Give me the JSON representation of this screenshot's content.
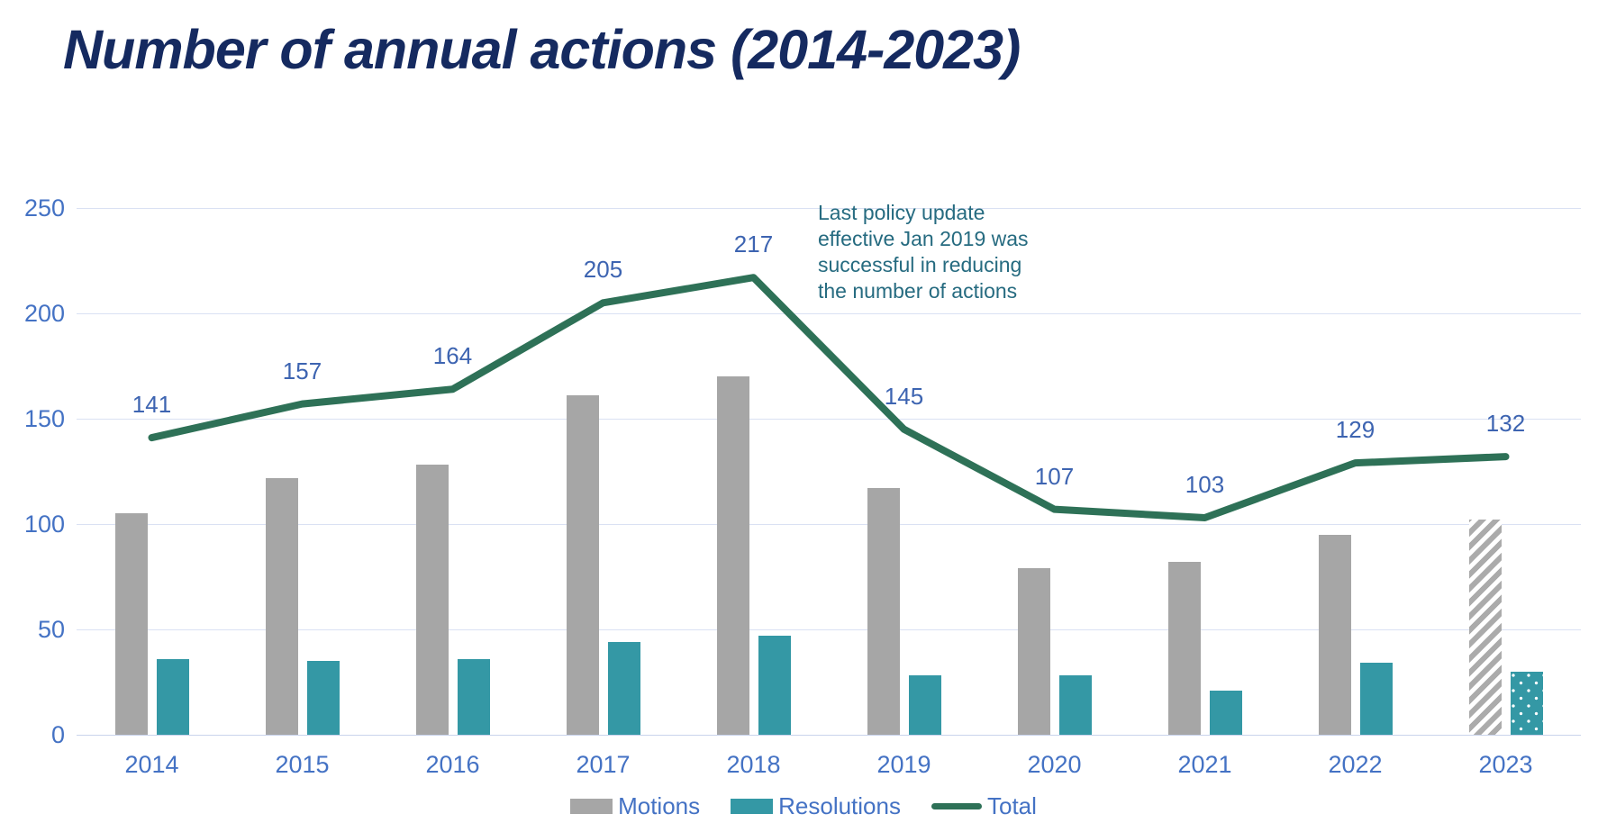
{
  "title": "Number of annual actions (2014-2023)",
  "annotation": "Last policy update\neffective Jan 2019 was\nsuccessful in reducing\nthe number of actions",
  "colors": {
    "title": "#152A60",
    "axis_labels": "#4472C4",
    "data_labels": "#3D64B1",
    "motions_bar": "#A6A6A6",
    "resolutions_bar": "#3498A5",
    "total_line": "#2E7157",
    "gridline": "#DAE1F3",
    "annotation_text": "#266B80"
  },
  "chart_data": {
    "type": "bar",
    "subtype": "grouped bars with line overlay (combo chart)",
    "categories": [
      "2014",
      "2015",
      "2016",
      "2017",
      "2018",
      "2019",
      "2020",
      "2021",
      "2022",
      "2023"
    ],
    "series": [
      {
        "name": "Motions",
        "type": "bar",
        "color": "#A6A6A6",
        "values": [
          105,
          122,
          128,
          161,
          170,
          117,
          79,
          82,
          95,
          102
        ],
        "last_category_pattern": "diagonal-hatch"
      },
      {
        "name": "Resolutions",
        "type": "bar",
        "color": "#3498A5",
        "values": [
          36,
          35,
          36,
          44,
          47,
          28,
          28,
          21,
          34,
          30
        ],
        "last_category_pattern": "white-dots"
      },
      {
        "name": "Total",
        "type": "line",
        "color": "#2E7157",
        "values": [
          141,
          157,
          164,
          205,
          217,
          145,
          107,
          103,
          129,
          132
        ],
        "data_labels": [
          141,
          157,
          164,
          205,
          217,
          145,
          107,
          103,
          129,
          132
        ]
      }
    ],
    "title": "Number of annual actions (2014-2023)",
    "xlabel": "",
    "ylabel": "",
    "ylim": [
      0,
      250
    ],
    "yticks": [
      0,
      50,
      100,
      150,
      200,
      250
    ],
    "grid": "horizontal",
    "legend_position": "bottom",
    "annotation": "Last policy update effective Jan 2019 was successful in reducing the number of actions"
  }
}
